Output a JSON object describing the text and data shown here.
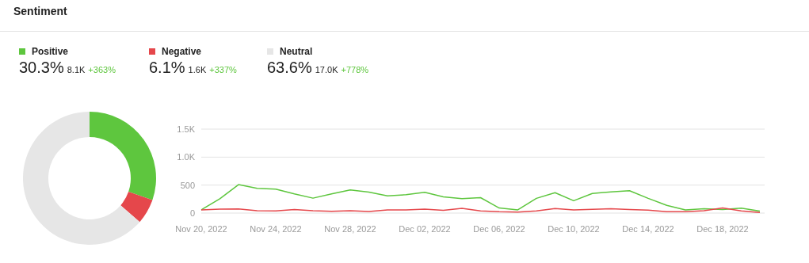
{
  "chart_data": [
    {
      "type": "donut",
      "title": "Sentiment",
      "categories": [
        "Positive",
        "Negative",
        "Neutral"
      ],
      "values": [
        30.3,
        6.1,
        63.6
      ],
      "colors": [
        "#5ec63e",
        "#e5474b",
        "#e6e6e6"
      ],
      "value_labels": [
        "30.3%",
        "6.1%",
        "63.6%"
      ],
      "legend": "top",
      "annotations": [
        "8.1K",
        "+363%",
        "1.6K",
        "+337%",
        "17.0K",
        "+778%"
      ]
    },
    {
      "type": "line",
      "categories": [
        "Nov 20, 2022",
        null,
        null,
        null,
        "Nov 24, 2022",
        null,
        null,
        null,
        "Nov 28, 2022",
        null,
        null,
        null,
        "Dec 02, 2022",
        null,
        null,
        null,
        "Dec 06, 2022",
        null,
        null,
        null,
        "Dec 10, 2022",
        null,
        null,
        null,
        "Dec 14, 2022",
        null,
        null,
        null,
        "Dec 18, 2022",
        null,
        null
      ],
      "series": [
        {
          "color": "#5ec63e",
          "values": [
            57,
            257,
            509,
            443,
            428,
            343,
            267,
            343,
            414,
            376,
            309,
            328,
            371,
            290,
            257,
            276,
            91,
            58,
            264,
            365,
            221,
            351,
            380,
            399,
            264,
            139,
            58,
            77,
            63,
            87,
            34
          ]
        },
        {
          "color": "#e5474b",
          "values": [
            57,
            71,
            76,
            43,
            38,
            62,
            43,
            33,
            43,
            29,
            57,
            57,
            71,
            48,
            86,
            38,
            24,
            19,
            38,
            82,
            58,
            67,
            77,
            62,
            53,
            24,
            24,
            43,
            91,
            38,
            10
          ]
        }
      ],
      "ylim": [
        0,
        1500
      ],
      "yticks": [
        0,
        500,
        {
          "value": 1000,
          "label": "1.0K"
        },
        {
          "value": 1500,
          "label": "1.5K"
        }
      ],
      "grid": "y"
    }
  ]
}
